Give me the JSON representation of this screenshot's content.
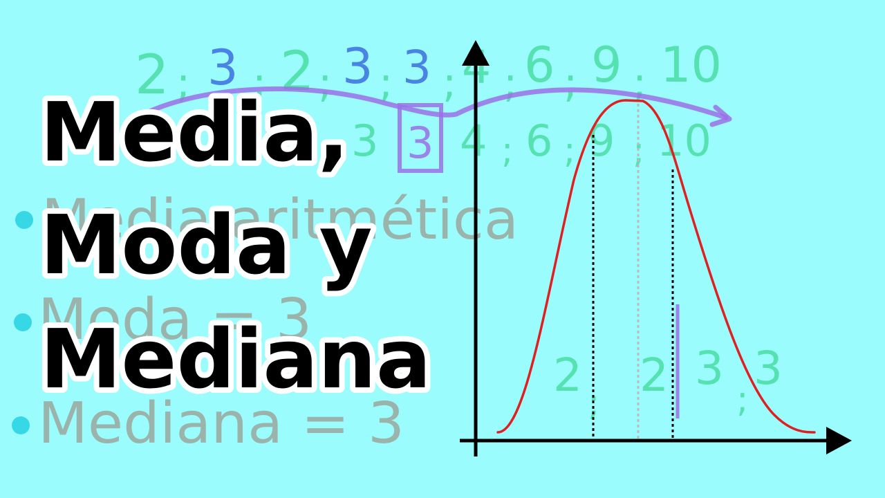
{
  "title": {
    "line1": "Media,",
    "line2": "Moda y",
    "line3": "Mediana"
  },
  "background_notes": {
    "top_row": [
      "2",
      ";",
      "3",
      ";",
      "2",
      ";",
      "3",
      ";",
      "3",
      ";",
      "4",
      ";",
      "6",
      ";",
      "9",
      ";",
      "10"
    ],
    "second_row": [
      "3",
      "4",
      ";",
      "6",
      ";",
      "9",
      ";",
      "10"
    ],
    "boxed_value": "3",
    "bullet_media": "Media aritmética",
    "bullet_moda": "Moda = 3",
    "bullet_mediana": "Mediana = 3",
    "bottom_values": [
      "2",
      ";",
      "2",
      "3",
      ";",
      "3"
    ]
  },
  "colors": {
    "background": "#9afcfd",
    "curve": "#e02020",
    "axes": "#000000",
    "notes_green": "#3fd897",
    "notes_blue": "#3b6fe0",
    "notes_brown": "#9b7a6b",
    "arrow_purple": "#9b6ee6",
    "bullet": "#37d8e6"
  }
}
